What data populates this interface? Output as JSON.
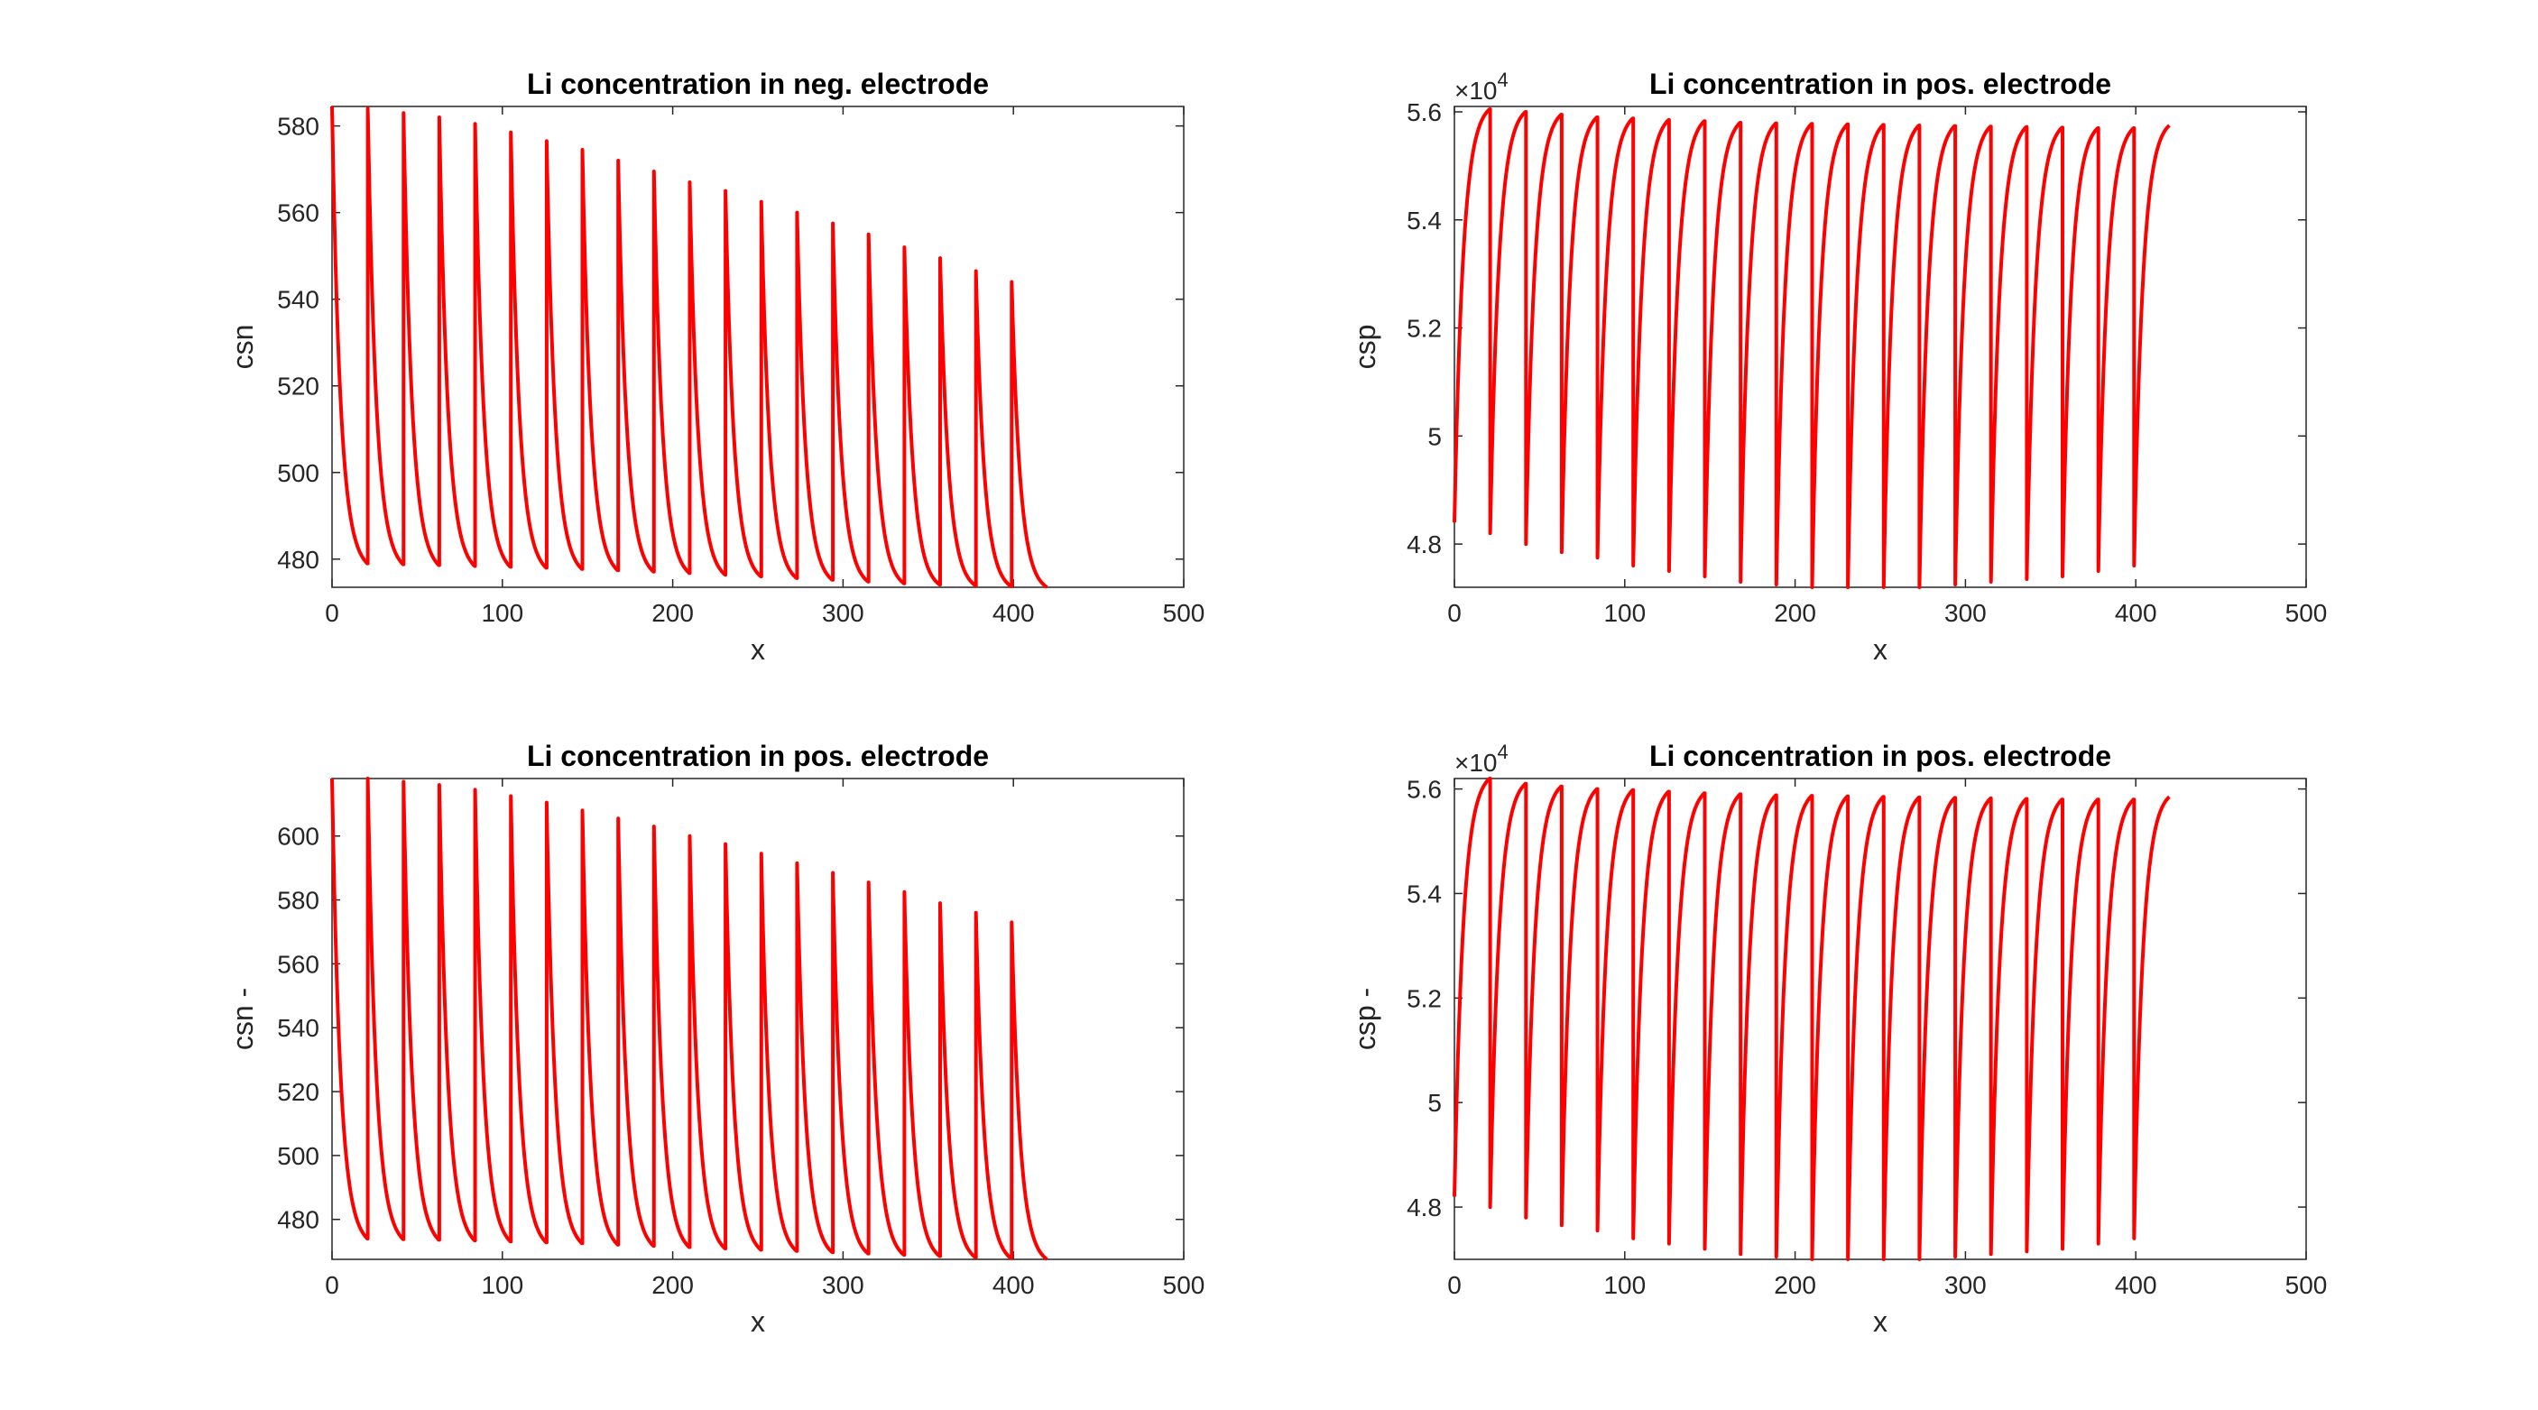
{
  "line_color": "#ff0000",
  "chart_data": [
    {
      "type": "line",
      "title": "Li concentration in neg. electrode",
      "xlabel": "x",
      "ylabel": "csn",
      "xlim": [
        0,
        500
      ],
      "ylim": [
        473.5,
        584.5
      ],
      "xticks": [
        0,
        100,
        200,
        300,
        400,
        500
      ],
      "yticks": [
        480,
        500,
        520,
        540,
        560,
        580
      ],
      "exponent": "",
      "cycle_period": 21,
      "cycles": 20,
      "peaks": [
        584.5,
        584,
        583,
        582,
        580.5,
        578.5,
        576.5,
        574.5,
        572,
        569.5,
        567,
        565,
        562.5,
        560,
        557.5,
        555,
        552,
        549.5,
        546.5,
        544
      ],
      "troughs": [
        479,
        478.8,
        478.6,
        478.4,
        478.2,
        478,
        477.7,
        477.4,
        477.1,
        476.8,
        476.4,
        476,
        475.6,
        475.2,
        474.8,
        474.4,
        474.1,
        473.9,
        473.7,
        473.5
      ]
    },
    {
      "type": "line",
      "title": "Li concentration in pos. electrode",
      "xlabel": "x",
      "ylabel": "csp",
      "xlim": [
        0,
        500
      ],
      "ylim": [
        4.72,
        5.61
      ],
      "xticks": [
        0,
        100,
        200,
        300,
        400,
        500
      ],
      "yticks": [
        4.8,
        5.0,
        5.2,
        5.4,
        5.6
      ],
      "ytick_labels": [
        "4.8",
        "5",
        "5.2",
        "5.4",
        "5.6"
      ],
      "exponent": "4",
      "cycle_period": 21,
      "cycles": 20,
      "peaks": [
        5.605,
        5.6,
        5.595,
        5.59,
        5.588,
        5.585,
        5.583,
        5.58,
        5.579,
        5.578,
        5.577,
        5.576,
        5.575,
        5.574,
        5.573,
        5.572,
        5.571,
        5.57,
        5.57,
        5.575
      ],
      "troughs": [
        4.84,
        4.82,
        4.8,
        4.785,
        4.775,
        4.76,
        4.75,
        4.74,
        4.73,
        4.725,
        4.72,
        4.72,
        4.72,
        4.72,
        4.725,
        4.73,
        4.735,
        4.74,
        4.75,
        4.76
      ]
    },
    {
      "type": "line",
      "title": "Li concentration in pos. electrode",
      "xlabel": "x",
      "ylabel": "csn -",
      "xlim": [
        0,
        500
      ],
      "ylim": [
        467.5,
        618
      ],
      "xticks": [
        0,
        100,
        200,
        300,
        400,
        500
      ],
      "yticks": [
        480,
        500,
        520,
        540,
        560,
        580,
        600
      ],
      "exponent": "",
      "cycle_period": 21,
      "cycles": 20,
      "peaks": [
        618,
        618,
        617,
        616,
        614.5,
        612.5,
        610.5,
        608,
        605.5,
        603,
        600,
        597.5,
        594.5,
        591.5,
        588.5,
        585.5,
        582.5,
        579,
        576,
        573
      ],
      "troughs": [
        474,
        473.8,
        473.6,
        473.4,
        473.1,
        472.8,
        472.5,
        472.1,
        471.7,
        471.3,
        470.9,
        470.5,
        470.1,
        469.7,
        469.3,
        468.9,
        468.5,
        468.1,
        467.8,
        467.5
      ]
    },
    {
      "type": "line",
      "title": "Li concentration in pos. electrode",
      "xlabel": "x",
      "ylabel": "csp -",
      "xlim": [
        0,
        500
      ],
      "ylim": [
        4.7,
        5.62
      ],
      "xticks": [
        0,
        100,
        200,
        300,
        400,
        500
      ],
      "yticks": [
        4.8,
        5.0,
        5.2,
        5.4,
        5.6
      ],
      "ytick_labels": [
        "4.8",
        "5",
        "5.2",
        "5.4",
        "5.6"
      ],
      "exponent": "4",
      "cycle_period": 21,
      "cycles": 20,
      "peaks": [
        5.62,
        5.61,
        5.605,
        5.6,
        5.598,
        5.595,
        5.592,
        5.59,
        5.588,
        5.587,
        5.586,
        5.585,
        5.584,
        5.583,
        5.582,
        5.581,
        5.58,
        5.58,
        5.58,
        5.585
      ],
      "troughs": [
        4.82,
        4.8,
        4.78,
        4.765,
        4.755,
        4.74,
        4.73,
        4.72,
        4.71,
        4.705,
        4.7,
        4.7,
        4.7,
        4.7,
        4.705,
        4.71,
        4.715,
        4.72,
        4.73,
        4.74
      ]
    }
  ]
}
